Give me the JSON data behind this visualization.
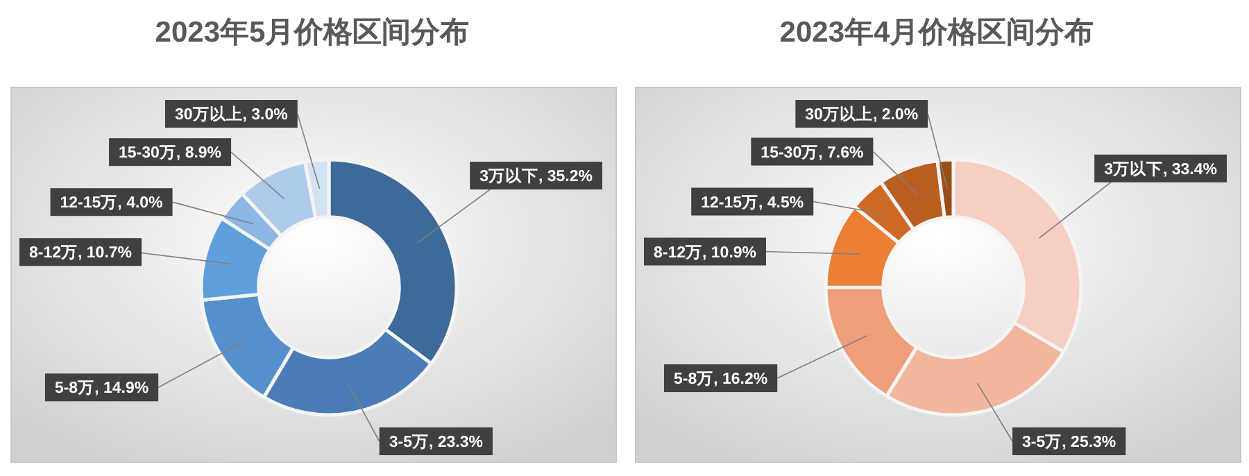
{
  "chart_data": [
    {
      "type": "donut",
      "title": "2023年5月价格区间分布",
      "categories": [
        "3万以下",
        "3-5万",
        "5-8万",
        "8-12万",
        "12-15万",
        "15-30万",
        "30万以上"
      ],
      "values": [
        35.2,
        23.3,
        14.9,
        10.7,
        4.0,
        8.9,
        3.0
      ],
      "value_labels": [
        "35.2%",
        "23.3%",
        "14.9%",
        "10.7%",
        "4.0%",
        "8.9%",
        "3.0%"
      ],
      "colors": [
        "#3d6a98",
        "#4a7db8",
        "#5690cc",
        "#5f9fdc",
        "#8cb6e4",
        "#afcbec",
        "#d3e2f3"
      ]
    },
    {
      "type": "donut",
      "title": "2023年4月价格区间分布",
      "categories": [
        "3万以下",
        "3-5万",
        "5-8万",
        "8-12万",
        "12-15万",
        "15-30万",
        "30万以上"
      ],
      "values": [
        33.4,
        25.3,
        16.2,
        10.9,
        4.5,
        7.6,
        2.0
      ],
      "value_labels": [
        "33.4%",
        "25.3%",
        "16.2%",
        "10.9%",
        "4.5%",
        "7.6%",
        "2.0%"
      ],
      "colors": [
        "#f6cfc2",
        "#f2b69d",
        "#ee9e78",
        "#eb7f34",
        "#cf6a26",
        "#b95f20",
        "#9a4e17"
      ]
    }
  ]
}
